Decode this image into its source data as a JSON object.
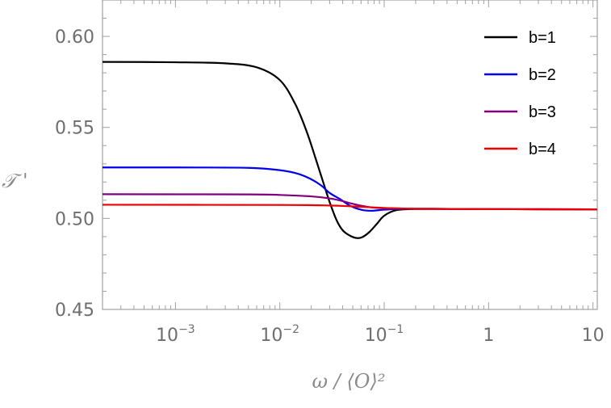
{
  "chart_data": {
    "type": "line",
    "xscale": "log",
    "xlabel": "ω / ⟨O⟩²",
    "ylabel": "𝒯 '",
    "xlim": [
      0.0002,
      11
    ],
    "ylim": [
      0.45,
      0.62
    ],
    "grid": false,
    "legend_position": "top-right",
    "x_ticks": [
      {
        "value": 0.001,
        "base": "10",
        "exp": "−3"
      },
      {
        "value": 0.01,
        "base": "10",
        "exp": "−2"
      },
      {
        "value": 0.1,
        "base": "10",
        "exp": "−1"
      },
      {
        "value": 1,
        "base": "1",
        "exp": ""
      },
      {
        "value": 10,
        "base": "10",
        "exp": ""
      }
    ],
    "y_ticks": [
      {
        "value": 0.45,
        "label": "0.45"
      },
      {
        "value": 0.5,
        "label": "0.50"
      },
      {
        "value": 0.55,
        "label": "0.55"
      },
      {
        "value": 0.6,
        "label": "0.60"
      }
    ],
    "series": [
      {
        "name": "b=1",
        "color": "#000000",
        "points": [
          [
            0.0002,
            0.586
          ],
          [
            0.001,
            0.5858
          ],
          [
            0.003,
            0.5852
          ],
          [
            0.006,
            0.583
          ],
          [
            0.01,
            0.576
          ],
          [
            0.014,
            0.563
          ],
          [
            0.018,
            0.548
          ],
          [
            0.022,
            0.533
          ],
          [
            0.026,
            0.52
          ],
          [
            0.03,
            0.509
          ],
          [
            0.035,
            0.499
          ],
          [
            0.04,
            0.4935
          ],
          [
            0.047,
            0.4905
          ],
          [
            0.055,
            0.4892
          ],
          [
            0.062,
            0.4898
          ],
          [
            0.072,
            0.4925
          ],
          [
            0.085,
            0.497
          ],
          [
            0.1,
            0.5015
          ],
          [
            0.13,
            0.5045
          ],
          [
            0.2,
            0.5052
          ],
          [
            0.5,
            0.5052
          ],
          [
            1,
            0.5051
          ],
          [
            11,
            0.505
          ]
        ]
      },
      {
        "name": "b=2",
        "color": "#0000ee",
        "points": [
          [
            0.0002,
            0.528
          ],
          [
            0.001,
            0.528
          ],
          [
            0.005,
            0.5278
          ],
          [
            0.01,
            0.5265
          ],
          [
            0.015,
            0.5245
          ],
          [
            0.02,
            0.5215
          ],
          [
            0.025,
            0.518
          ],
          [
            0.03,
            0.514
          ],
          [
            0.038,
            0.5105
          ],
          [
            0.047,
            0.507
          ],
          [
            0.06,
            0.5048
          ],
          [
            0.075,
            0.5042
          ],
          [
            0.1,
            0.5048
          ],
          [
            0.15,
            0.5052
          ],
          [
            0.3,
            0.5052
          ],
          [
            1,
            0.5051
          ],
          [
            11,
            0.505
          ]
        ]
      },
      {
        "name": "b=3",
        "color": "#800080",
        "points": [
          [
            0.0002,
            0.5133
          ],
          [
            0.005,
            0.5132
          ],
          [
            0.01,
            0.5129
          ],
          [
            0.02,
            0.5121
          ],
          [
            0.03,
            0.511
          ],
          [
            0.04,
            0.5095
          ],
          [
            0.05,
            0.508
          ],
          [
            0.07,
            0.5063
          ],
          [
            0.1,
            0.5056
          ],
          [
            0.2,
            0.5053
          ],
          [
            1,
            0.5051
          ],
          [
            11,
            0.505
          ]
        ]
      },
      {
        "name": "b=4",
        "color": "#ee0000",
        "points": [
          [
            0.0002,
            0.5075
          ],
          [
            0.01,
            0.5074
          ],
          [
            0.03,
            0.5071
          ],
          [
            0.05,
            0.5066
          ],
          [
            0.1,
            0.5058
          ],
          [
            0.2,
            0.5053
          ],
          [
            1,
            0.5051
          ],
          [
            11,
            0.505
          ]
        ]
      }
    ]
  }
}
